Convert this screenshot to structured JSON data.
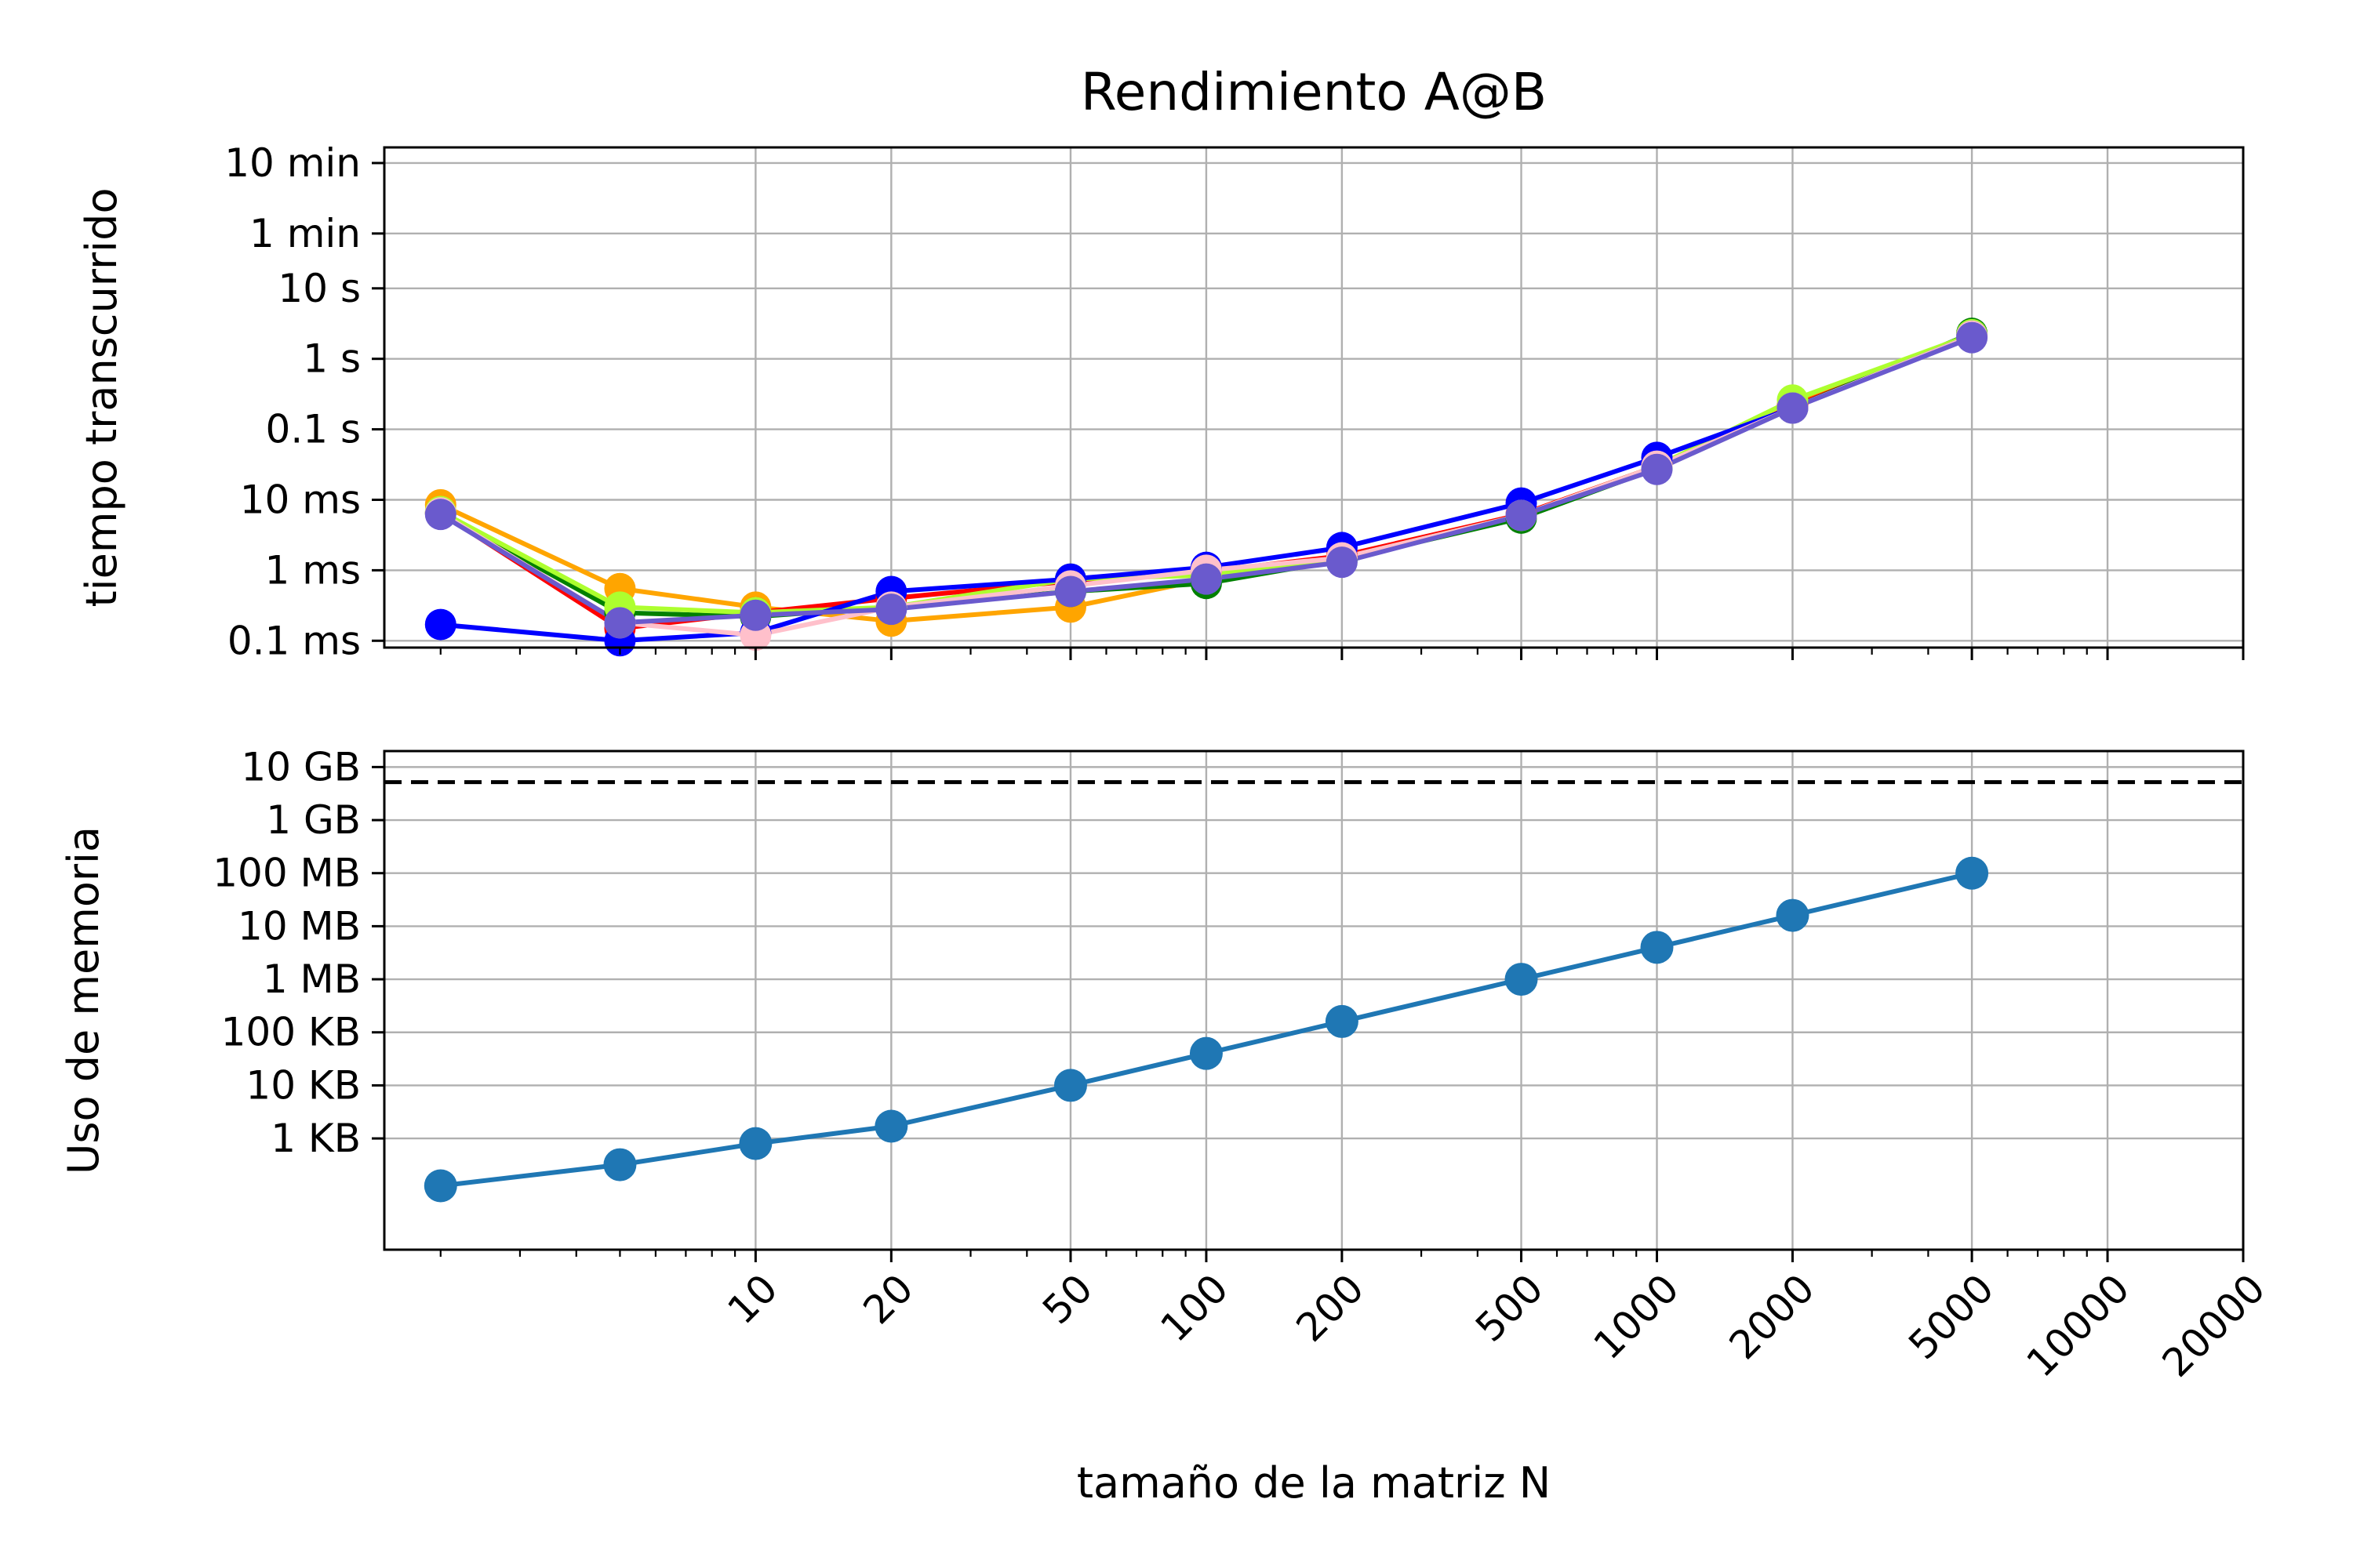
{
  "chart_data": [
    {
      "type": "line",
      "title": "Rendimiento A@B",
      "ylabel": "tiempo transcurrido",
      "xscale": "log",
      "yscale": "log",
      "xlim": [
        1.5,
        20000
      ],
      "ylim_seconds": [
        8e-05,
        1000
      ],
      "grid": true,
      "ytick_values": [
        0.0001,
        0.001,
        0.01,
        0.1,
        1,
        10,
        60,
        600
      ],
      "ytick_labels": [
        "0.1 ms",
        "1 ms",
        "10 ms",
        "0.1 s",
        "1 s",
        "10 s",
        "1 min",
        "10 min"
      ],
      "x": [
        2,
        5,
        10,
        20,
        50,
        100,
        200,
        500,
        1000,
        2000,
        5000
      ],
      "series": [
        {
          "color": "#ffa500",
          "values": [
            0.0085,
            0.00055,
            0.0003,
            0.00019,
            0.0003,
            0.00075,
            0.0015,
            0.006,
            0.03,
            0.22,
            2.2
          ]
        },
        {
          "color": "#ff0000",
          "values": [
            0.0065,
            0.00015,
            0.00025,
            0.0004,
            0.0007,
            0.00095,
            0.0016,
            0.0062,
            0.03,
            0.21,
            2.1
          ]
        },
        {
          "color": "#008000",
          "values": [
            0.0065,
            0.00025,
            0.00022,
            0.0003,
            0.0005,
            0.00065,
            0.0014,
            0.0055,
            0.028,
            0.2,
            2.3
          ]
        },
        {
          "color": "#adff2f",
          "values": [
            0.0068,
            0.0003,
            0.00025,
            0.0003,
            0.00075,
            0.00085,
            0.0015,
            0.006,
            0.03,
            0.26,
            2.2
          ]
        },
        {
          "color": "#0000ff",
          "values": [
            0.00017,
            0.0001,
            0.00013,
            0.0005,
            0.00075,
            0.0011,
            0.0021,
            0.009,
            0.04,
            0.2,
            2.1
          ]
        },
        {
          "color": "#ffc0cb",
          "values": [
            0.0065,
            0.00018,
            0.00012,
            0.0003,
            0.0006,
            0.001,
            0.0015,
            0.006,
            0.03,
            0.2,
            2.1
          ]
        },
        {
          "color": "#6a5acd",
          "values": [
            0.0062,
            0.00018,
            0.00023,
            0.00028,
            0.0005,
            0.00075,
            0.0013,
            0.006,
            0.027,
            0.2,
            2.0
          ]
        }
      ]
    },
    {
      "type": "line",
      "ylabel": "Uso de memoria",
      "xlabel": "tamaño de la matriz N",
      "xscale": "log",
      "yscale": "log",
      "xlim": [
        1.5,
        20000
      ],
      "ylim_bytes": [
        8,
        20000000000
      ],
      "grid": true,
      "ytick_values": [
        1000,
        10000,
        100000,
        1000000,
        10000000,
        100000000,
        1000000000,
        10000000000
      ],
      "ytick_labels": [
        "1 KB",
        "10 KB",
        "100 KB",
        "1 MB",
        "10 MB",
        "100 MB",
        "1 GB",
        "10 GB"
      ],
      "xtick_values": [
        10,
        20,
        50,
        100,
        200,
        500,
        1000,
        2000,
        5000,
        10000,
        20000
      ],
      "xtick_labels": [
        "10",
        "20",
        "50",
        "100",
        "200",
        "500",
        "1000",
        "2000",
        "5000",
        "10000",
        "20000"
      ],
      "memory_limit_bytes": 5200000000,
      "memory_limit_style": "dashed",
      "x": [
        2,
        5,
        10,
        20,
        50,
        100,
        200,
        500,
        1000,
        2000,
        5000
      ],
      "series": [
        {
          "color": "#1f77b4",
          "values": [
            128,
            320,
            800,
            1700,
            10000,
            40000,
            160000,
            1000000,
            4000000,
            16000000,
            100000000
          ]
        }
      ]
    }
  ]
}
